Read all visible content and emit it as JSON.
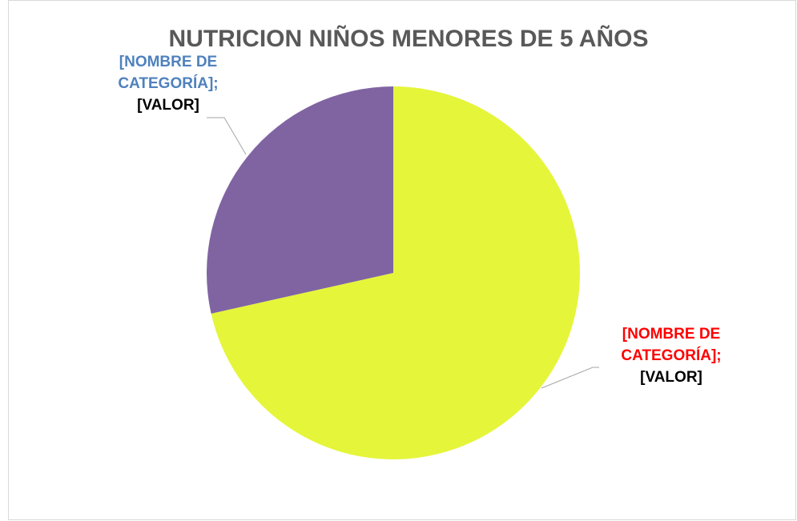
{
  "chart_data": {
    "type": "pie",
    "title": "NUTRICION NIÑOS MENORES DE 5 AÑOS",
    "categories": [
      "[NOMBRE DE CATEGORÍA];",
      "[NOMBRE DE CATEGORÍA];"
    ],
    "values": [
      71.5,
      28.5
    ],
    "value_labels": [
      "[VALOR]",
      "[VALOR]"
    ],
    "colors": [
      "#e5f53a",
      "#8064a2"
    ],
    "label_colors": [
      "#ff0000",
      "#4f81bd"
    ]
  }
}
